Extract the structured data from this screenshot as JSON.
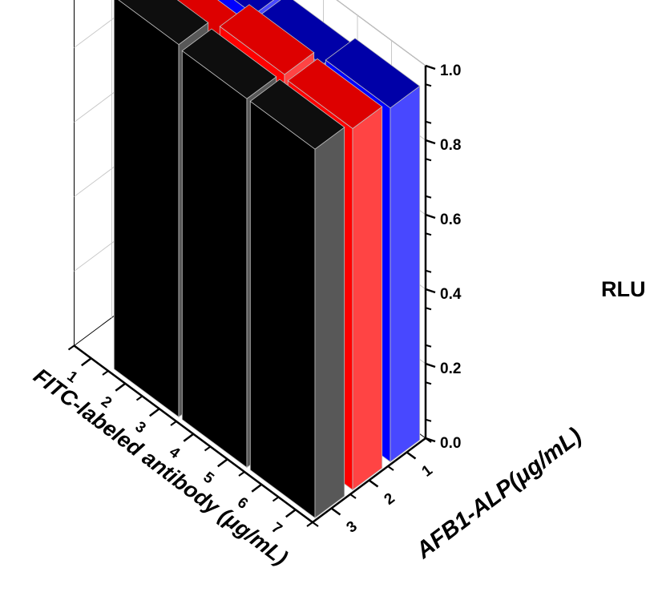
{
  "chart_data": {
    "type": "bar3d",
    "z_axis": {
      "label": "RLU",
      "ticks": [
        "0.0",
        "0.2",
        "0.4",
        "0.6",
        "0.8",
        "1.0"
      ],
      "range": [
        0,
        1.0
      ]
    },
    "x_axis": {
      "label": "FITC-labeled antibody (μg/mL)",
      "ticks": [
        "1",
        "2",
        "3",
        "4",
        "5",
        "6",
        "7"
      ]
    },
    "y_axis": {
      "label": "AFB1-ALP(μg/mL)",
      "ticks": [
        "1",
        "2",
        "3"
      ]
    },
    "series": [
      {
        "afb1_alp": "1",
        "color": "#0000ff",
        "points": [
          {
            "x": "2",
            "value": 0.93
          },
          {
            "x": "4",
            "value": 0.93
          },
          {
            "x": "6",
            "value": 0.95
          }
        ]
      },
      {
        "afb1_alp": "2",
        "color": "#ff0000",
        "points": [
          {
            "x": "2",
            "value": 0.93
          },
          {
            "x": "4",
            "value": 0.98
          },
          {
            "x": "6",
            "value": 0.97
          }
        ]
      },
      {
        "afb1_alp": "3",
        "color": "#000000",
        "points": [
          {
            "x": "2",
            "value": 1.0
          },
          {
            "x": "4",
            "value": 0.99
          },
          {
            "x": "6",
            "value": 0.99
          }
        ]
      }
    ],
    "grid": true
  }
}
